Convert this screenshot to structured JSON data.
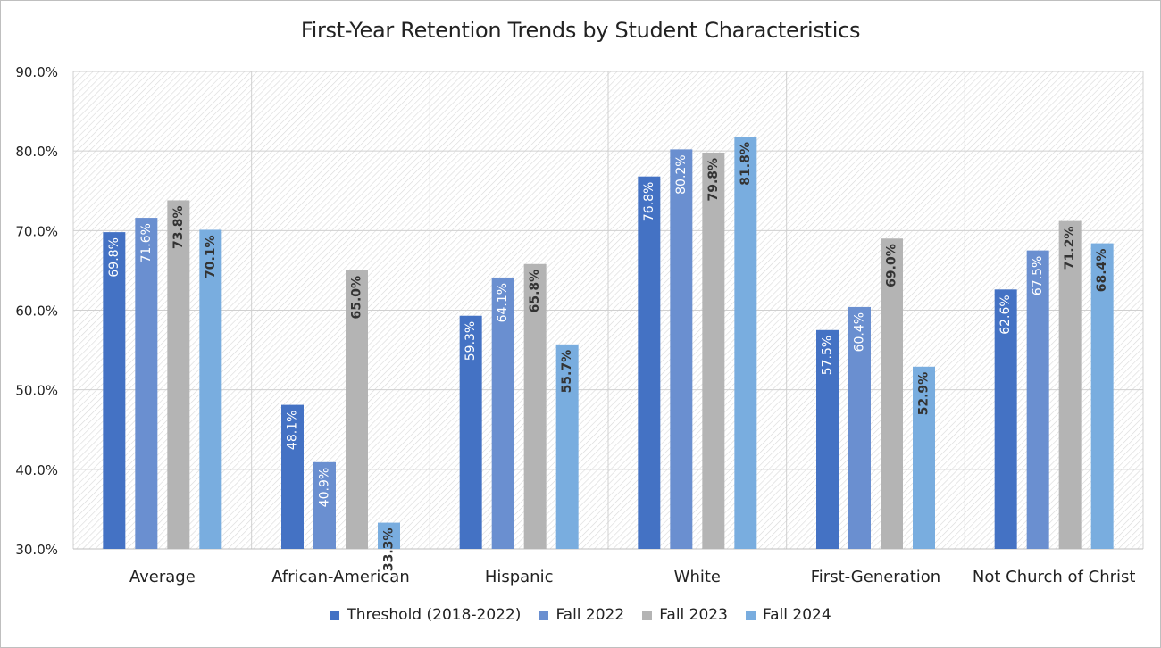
{
  "chart_data": {
    "type": "bar",
    "title": "First-Year Retention Trends by Student Characteristics",
    "xlabel": "",
    "ylabel": "",
    "ylim": [
      30,
      90
    ],
    "ytick_values": [
      30,
      40,
      50,
      60,
      70,
      80,
      90
    ],
    "ytick_labels": [
      "30.0%",
      "40.0%",
      "50.0%",
      "60.0%",
      "70.0%",
      "80.0%",
      "90.0%"
    ],
    "grid": true,
    "legend_position": "bottom",
    "categories": [
      "Average",
      "African-American",
      "Hispanic",
      "White",
      "First-Generation",
      "Not Church of Christ"
    ],
    "series": [
      {
        "name": "Threshold (2018-2022)",
        "color": "#4472c4",
        "label_color": "#ffffff",
        "values": [
          69.8,
          48.1,
          59.3,
          76.8,
          57.5,
          62.6
        ],
        "labels": [
          "69.8%",
          "48.1%",
          "59.3%",
          "76.8%",
          "57.5%",
          "62.6%"
        ]
      },
      {
        "name": "Fall 2022",
        "color": "#6a8fd0",
        "label_color": "#ffffff",
        "values": [
          71.6,
          40.9,
          64.1,
          80.2,
          60.4,
          67.5
        ],
        "labels": [
          "71.6%",
          "40.9%",
          "64.1%",
          "80.2%",
          "60.4%",
          "67.5%"
        ]
      },
      {
        "name": "Fall 2023",
        "color": "#b4b4b4",
        "label_color": "#333333",
        "values": [
          73.8,
          65.0,
          65.8,
          79.8,
          69.0,
          71.2
        ],
        "labels": [
          "73.8%",
          "65.0%",
          "65.8%",
          "79.8%",
          "69.0%",
          "71.2%"
        ]
      },
      {
        "name": "Fall 2024",
        "color": "#79addf",
        "label_color": "#333333",
        "values": [
          70.1,
          33.3,
          55.7,
          81.8,
          52.9,
          68.4
        ],
        "labels": [
          "70.1%",
          "33.3%",
          "55.7%",
          "81.8%",
          "52.9%",
          "68.4%"
        ]
      }
    ]
  }
}
